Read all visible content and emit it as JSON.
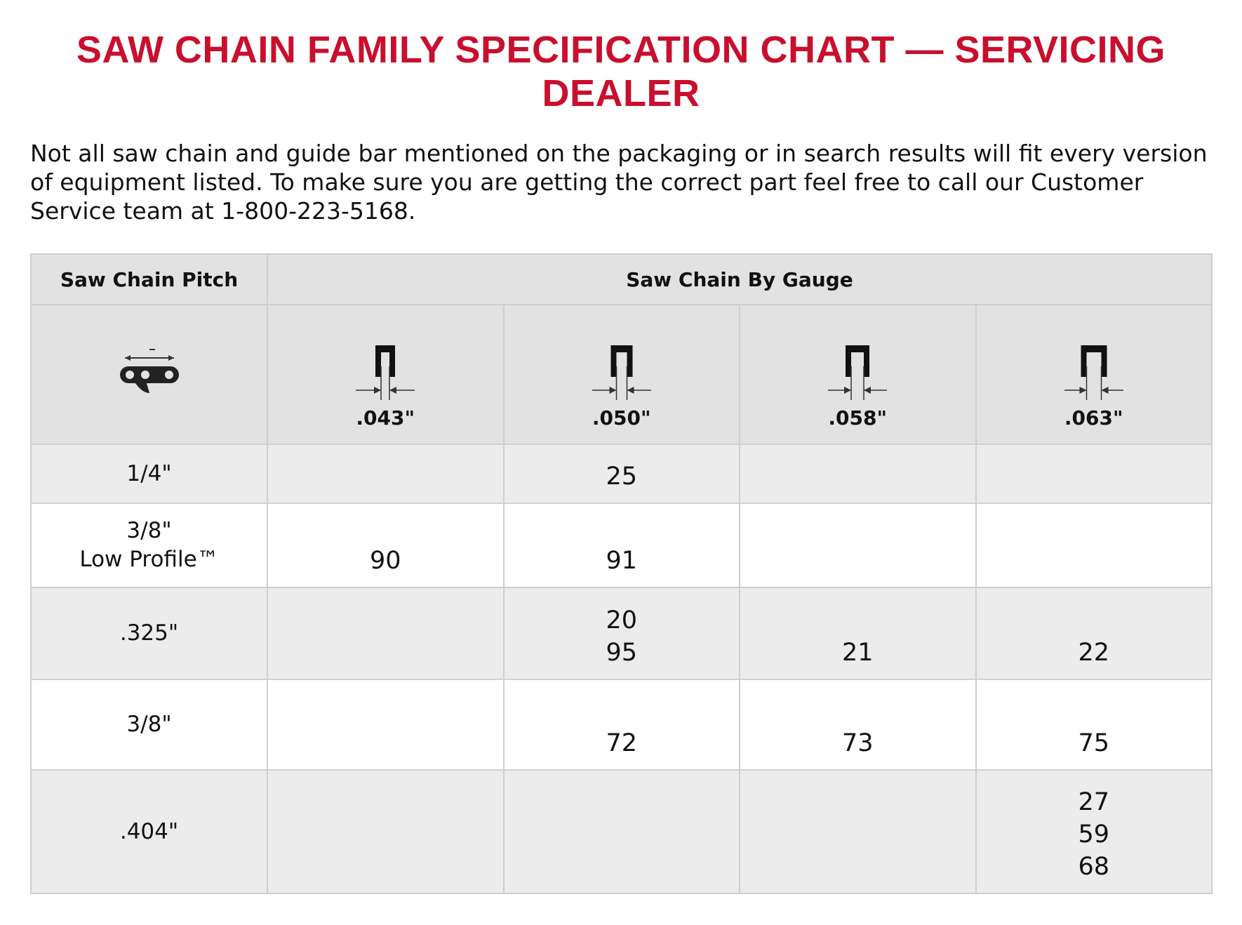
{
  "title": "SAW CHAIN FAMILY SPECIFICATION CHART — SERVICING DEALER",
  "intro": "Not all saw chain and guide bar mentioned on the packaging or in search results will fit every version of equipment listed. To make sure you are getting the correct part feel free to call our Customer Service team at 1-800-223-5168.",
  "table": {
    "headers": [
      "Saw Chain Pitch",
      "Saw Chain By Gauge"
    ],
    "gauges": [
      ".043\"",
      ".050\"",
      ".058\"",
      ".063\""
    ],
    "rows": [
      {
        "pitch": [
          "1/4\""
        ],
        "cells": [
          [],
          [
            "25"
          ],
          [],
          []
        ]
      },
      {
        "pitch": [
          "3/8\"",
          "Low Profile™"
        ],
        "cells": [
          [
            "90"
          ],
          [
            "91"
          ],
          [],
          []
        ]
      },
      {
        "pitch": [
          ".325\""
        ],
        "cells": [
          [],
          [
            "20",
            "95"
          ],
          [
            "21"
          ],
          [
            "22"
          ]
        ]
      },
      {
        "pitch": [
          "3/8\""
        ],
        "cells": [
          [],
          [
            "72"
          ],
          [
            "73"
          ],
          [
            "75"
          ]
        ]
      },
      {
        "pitch": [
          ".404\""
        ],
        "cells": [
          [],
          [],
          [],
          [
            "27",
            "59",
            "68"
          ]
        ]
      }
    ]
  }
}
